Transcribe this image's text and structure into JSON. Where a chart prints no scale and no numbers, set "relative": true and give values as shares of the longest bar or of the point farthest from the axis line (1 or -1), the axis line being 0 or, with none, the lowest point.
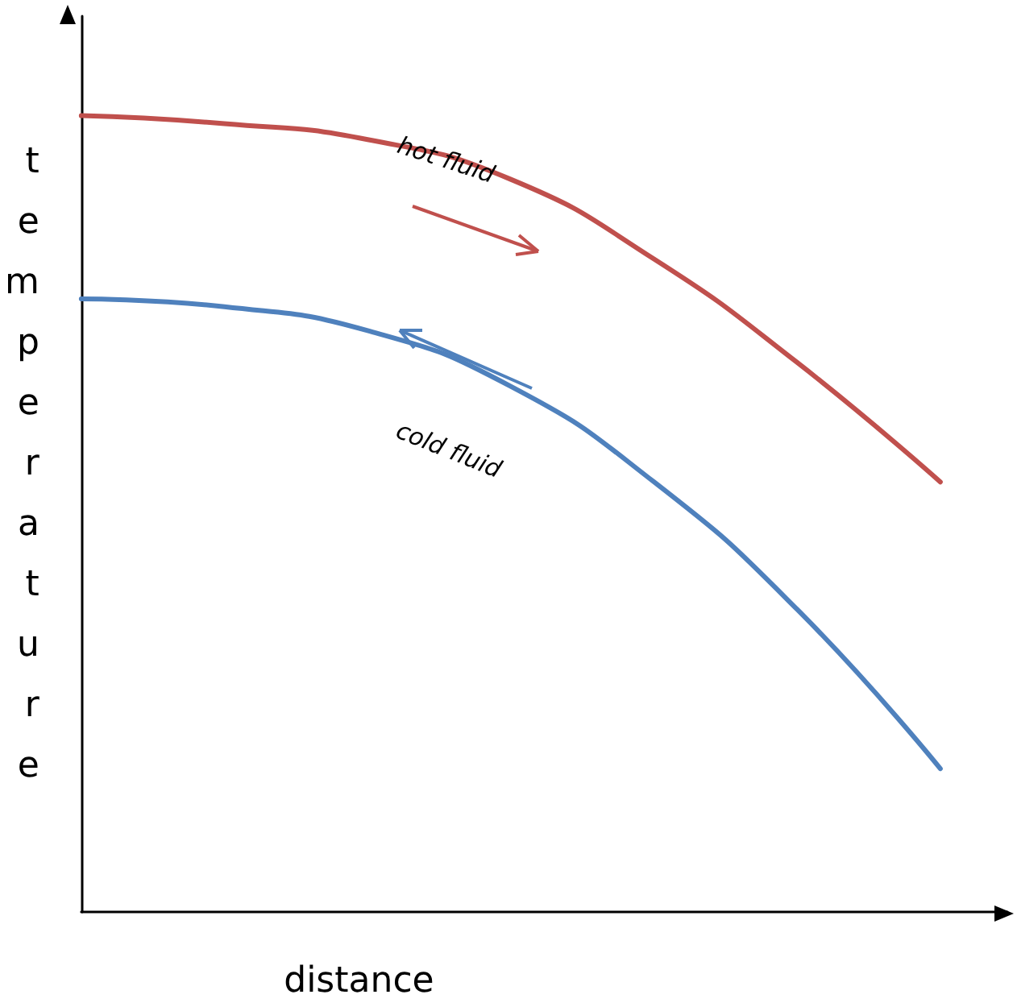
{
  "chart_data": {
    "type": "line",
    "relative": true,
    "xlabel": "distance",
    "ylabel": "temperature",
    "categories": [
      null,
      null,
      null,
      null,
      null,
      null,
      null
    ],
    "series": [
      {
        "name": "hot fluid",
        "color": "#c0504d",
        "values": [
          1,
          0.99,
          0.97,
          0.92,
          0.82,
          0.69,
          0.54
        ]
      },
      {
        "name": "cold fluid",
        "color": "#4f81bd",
        "values": [
          0.77,
          0.76,
          0.73,
          0.66,
          0.54,
          0.38,
          0.18
        ]
      }
    ],
    "grid": false,
    "legend": false,
    "marker": "none",
    "line_style": "solid"
  }
}
